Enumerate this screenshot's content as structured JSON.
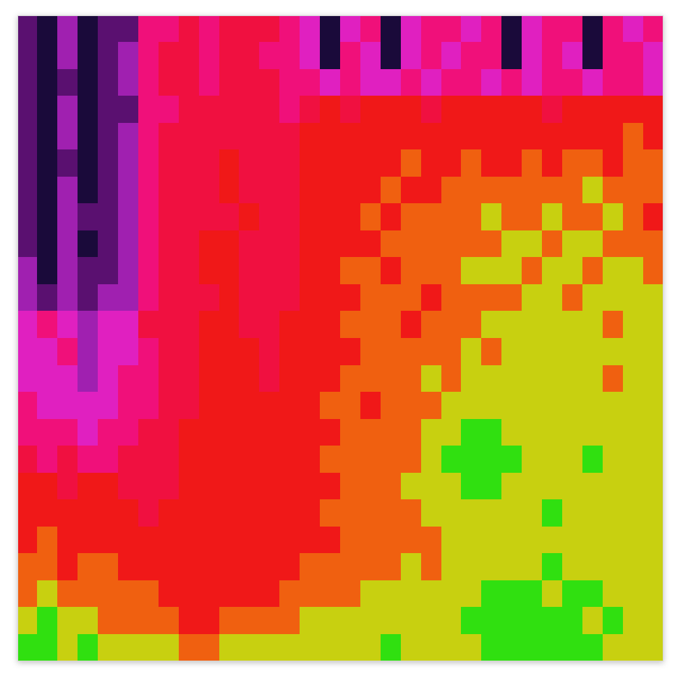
{
  "chart_data": {
    "type": "heatmap",
    "tick_labels": false,
    "zlim": [
      0,
      9
    ],
    "cells": [
      [
        1,
        0,
        2,
        0,
        1,
        1,
        4,
        4,
        5,
        4,
        5,
        5,
        5,
        4,
        3,
        0,
        3,
        4,
        0,
        3,
        4,
        4,
        3,
        4,
        0,
        3,
        4,
        4,
        0,
        4,
        3,
        4
      ],
      [
        1,
        0,
        2,
        0,
        1,
        2,
        4,
        5,
        5,
        4,
        5,
        5,
        4,
        4,
        3,
        0,
        4,
        3,
        0,
        3,
        4,
        3,
        4,
        4,
        0,
        3,
        4,
        3,
        0,
        4,
        4,
        3
      ],
      [
        1,
        0,
        1,
        0,
        1,
        2,
        4,
        5,
        5,
        4,
        5,
        5,
        5,
        4,
        4,
        3,
        4,
        3,
        3,
        4,
        3,
        4,
        4,
        3,
        4,
        3,
        4,
        4,
        3,
        4,
        4,
        3
      ],
      [
        1,
        0,
        2,
        0,
        1,
        1,
        4,
        4,
        5,
        5,
        5,
        5,
        5,
        4,
        5,
        6,
        5,
        6,
        6,
        6,
        5,
        6,
        6,
        6,
        6,
        6,
        5,
        6,
        6,
        6,
        6,
        6
      ],
      [
        1,
        0,
        2,
        0,
        1,
        2,
        4,
        5,
        5,
        5,
        5,
        5,
        5,
        5,
        6,
        6,
        6,
        6,
        6,
        6,
        6,
        6,
        6,
        6,
        6,
        6,
        6,
        6,
        6,
        6,
        7,
        6
      ],
      [
        1,
        0,
        1,
        0,
        1,
        2,
        4,
        5,
        5,
        5,
        6,
        5,
        5,
        5,
        6,
        6,
        6,
        6,
        6,
        7,
        6,
        6,
        7,
        6,
        6,
        7,
        6,
        7,
        7,
        6,
        7,
        7
      ],
      [
        1,
        0,
        2,
        0,
        1,
        2,
        4,
        5,
        5,
        5,
        6,
        5,
        5,
        5,
        6,
        6,
        6,
        6,
        7,
        6,
        6,
        7,
        7,
        7,
        7,
        7,
        7,
        7,
        8,
        7,
        7,
        7
      ],
      [
        1,
        0,
        2,
        1,
        1,
        2,
        4,
        5,
        5,
        5,
        5,
        6,
        5,
        5,
        6,
        6,
        6,
        7,
        6,
        7,
        7,
        7,
        7,
        8,
        7,
        7,
        8,
        7,
        7,
        8,
        7,
        6
      ],
      [
        1,
        0,
        2,
        0,
        1,
        2,
        4,
        5,
        5,
        6,
        6,
        5,
        5,
        5,
        6,
        6,
        6,
        6,
        7,
        7,
        7,
        7,
        7,
        7,
        8,
        8,
        7,
        8,
        8,
        7,
        7,
        7
      ],
      [
        2,
        0,
        2,
        1,
        1,
        2,
        4,
        5,
        5,
        6,
        6,
        5,
        5,
        5,
        6,
        6,
        7,
        7,
        6,
        7,
        7,
        7,
        8,
        8,
        8,
        7,
        8,
        8,
        7,
        8,
        8,
        7
      ],
      [
        2,
        1,
        2,
        1,
        2,
        2,
        4,
        5,
        5,
        5,
        6,
        5,
        5,
        5,
        6,
        6,
        6,
        7,
        7,
        7,
        6,
        7,
        7,
        7,
        7,
        8,
        8,
        7,
        8,
        8,
        8,
        8
      ],
      [
        3,
        4,
        3,
        2,
        3,
        3,
        5,
        5,
        5,
        6,
        6,
        5,
        5,
        6,
        6,
        6,
        7,
        7,
        7,
        6,
        7,
        7,
        7,
        8,
        8,
        8,
        8,
        8,
        8,
        7,
        8,
        8
      ],
      [
        3,
        3,
        4,
        2,
        3,
        3,
        4,
        5,
        5,
        6,
        6,
        6,
        5,
        6,
        6,
        6,
        6,
        7,
        7,
        7,
        7,
        7,
        8,
        7,
        8,
        8,
        8,
        8,
        8,
        8,
        8,
        8
      ],
      [
        3,
        3,
        3,
        2,
        3,
        4,
        4,
        5,
        5,
        6,
        6,
        6,
        5,
        6,
        6,
        6,
        7,
        7,
        7,
        7,
        8,
        7,
        8,
        8,
        8,
        8,
        8,
        8,
        8,
        7,
        8,
        8
      ],
      [
        4,
        3,
        3,
        3,
        3,
        4,
        4,
        5,
        5,
        6,
        6,
        6,
        6,
        6,
        6,
        7,
        7,
        6,
        7,
        7,
        7,
        8,
        8,
        8,
        8,
        8,
        8,
        8,
        8,
        8,
        8,
        8
      ],
      [
        4,
        4,
        4,
        3,
        4,
        4,
        5,
        5,
        6,
        6,
        6,
        6,
        6,
        6,
        6,
        6,
        7,
        7,
        7,
        7,
        8,
        8,
        9,
        9,
        8,
        8,
        8,
        8,
        8,
        8,
        8,
        8
      ],
      [
        5,
        4,
        5,
        4,
        4,
        5,
        5,
        5,
        6,
        6,
        6,
        6,
        6,
        6,
        6,
        7,
        7,
        7,
        7,
        7,
        8,
        9,
        9,
        9,
        9,
        8,
        8,
        8,
        9,
        8,
        8,
        8
      ],
      [
        6,
        6,
        5,
        6,
        6,
        5,
        5,
        5,
        6,
        6,
        6,
        6,
        6,
        6,
        6,
        6,
        7,
        7,
        7,
        8,
        8,
        8,
        9,
        9,
        8,
        8,
        8,
        8,
        8,
        8,
        8,
        8
      ],
      [
        6,
        6,
        6,
        6,
        6,
        6,
        5,
        6,
        6,
        6,
        6,
        6,
        6,
        6,
        6,
        7,
        7,
        7,
        7,
        7,
        8,
        8,
        8,
        8,
        8,
        8,
        9,
        8,
        8,
        8,
        8,
        8
      ],
      [
        6,
        7,
        6,
        6,
        6,
        6,
        6,
        6,
        6,
        6,
        6,
        6,
        6,
        6,
        6,
        6,
        7,
        7,
        7,
        7,
        7,
        8,
        8,
        8,
        8,
        8,
        8,
        8,
        8,
        8,
        8,
        8
      ],
      [
        7,
        7,
        6,
        7,
        7,
        6,
        6,
        6,
        6,
        6,
        6,
        6,
        6,
        6,
        7,
        7,
        7,
        7,
        7,
        8,
        7,
        8,
        8,
        8,
        8,
        8,
        9,
        8,
        8,
        8,
        8,
        8
      ],
      [
        7,
        8,
        7,
        7,
        7,
        7,
        7,
        6,
        6,
        6,
        6,
        6,
        6,
        7,
        7,
        7,
        7,
        8,
        8,
        8,
        8,
        8,
        8,
        9,
        9,
        9,
        8,
        9,
        9,
        8,
        8,
        8
      ],
      [
        8,
        9,
        8,
        8,
        7,
        7,
        7,
        7,
        6,
        6,
        7,
        7,
        7,
        7,
        8,
        8,
        8,
        8,
        8,
        8,
        8,
        8,
        9,
        9,
        9,
        9,
        9,
        9,
        8,
        9,
        8,
        8
      ],
      [
        9,
        9,
        8,
        9,
        8,
        8,
        8,
        8,
        7,
        7,
        8,
        8,
        8,
        8,
        8,
        8,
        8,
        8,
        9,
        8,
        8,
        8,
        8,
        9,
        9,
        9,
        9,
        9,
        9,
        8,
        8,
        8
      ]
    ]
  }
}
